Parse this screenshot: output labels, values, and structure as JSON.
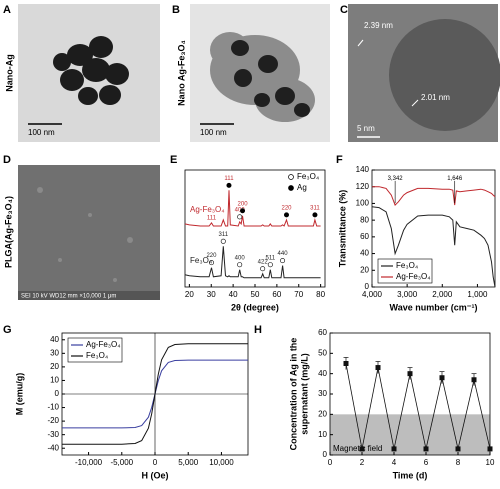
{
  "images": [
    {
      "letter": "A",
      "side_label": "Nano-Ag",
      "scale_bar": "100 nm"
    },
    {
      "letter": "B",
      "side_label": "Nano Ag-Fe₃O₄",
      "scale_bar": "100 nm"
    },
    {
      "letter": "C",
      "annotations": [
        "2.39 nm",
        "2.01 nm"
      ],
      "scale_bar": "5 nm"
    },
    {
      "letter": "D",
      "side_label": "PLGA(Ag-Fe₃O₄)",
      "footer": "SEI 10 kV WD12 mm ×10,000 1 μm"
    }
  ],
  "chart_data": [
    {
      "type": "line",
      "letter": "E",
      "xlabel": "2θ (degree)",
      "x": [
        18,
        20,
        25,
        29,
        30.1,
        31,
        34.5,
        35.5,
        36.5,
        37.5,
        38.1,
        38.7,
        42.3,
        43,
        43.7,
        44.3,
        45,
        52.8,
        53.5,
        54.2,
        56.3,
        57,
        57.7,
        61.9,
        62.6,
        63.3,
        64.4,
        65.2,
        76.7,
        77.4,
        78.2,
        80
      ],
      "series": [
        {
          "name": "Ag-Fe₃O₄",
          "color": "#c0282d",
          "values": [
            62,
            61,
            60,
            60,
            63,
            60,
            60,
            66,
            60,
            60,
            95,
            61,
            60,
            64,
            62,
            70,
            60,
            60,
            61,
            60,
            60,
            62,
            60,
            60,
            61,
            60,
            66,
            60,
            60,
            66,
            60,
            60
          ]
        },
        {
          "name": "Fe₃O₄",
          "color": "#222222",
          "values": [
            12,
            11,
            10,
            10,
            19,
            10,
            11,
            40,
            11,
            10,
            11,
            10,
            10,
            17,
            10,
            10,
            9,
            9,
            13,
            9,
            9,
            17,
            9,
            9,
            21,
            9,
            9,
            9,
            9,
            9,
            9,
            9
          ]
        }
      ],
      "peak_labels": [
        {
          "text": "111",
          "x": 30.1,
          "series": 0,
          "marker": "none"
        },
        {
          "text": "111",
          "x": 38.1,
          "series": 0,
          "marker": "filled"
        },
        {
          "text": "400",
          "x": 43,
          "series": 0,
          "marker": "open"
        },
        {
          "text": "200",
          "x": 44.3,
          "series": 0,
          "marker": "filled"
        },
        {
          "text": "220",
          "x": 64.4,
          "series": 0,
          "marker": "filled"
        },
        {
          "text": "311",
          "x": 77.4,
          "series": 0,
          "marker": "filled"
        },
        {
          "text": "220",
          "x": 30.1,
          "series": 1,
          "marker": "open"
        },
        {
          "text": "311",
          "x": 35.5,
          "series": 1,
          "marker": "open"
        },
        {
          "text": "400",
          "x": 43,
          "series": 1,
          "marker": "open"
        },
        {
          "text": "422",
          "x": 53.5,
          "series": 1,
          "marker": "open"
        },
        {
          "text": "511",
          "x": 57,
          "series": 1,
          "marker": "open"
        },
        {
          "text": "440",
          "x": 62.6,
          "series": 1,
          "marker": "open"
        }
      ],
      "legend": [
        {
          "label": "Fe₃O₄",
          "marker": "open"
        },
        {
          "label": "Ag",
          "marker": "filled"
        }
      ],
      "xlim": [
        18,
        82
      ],
      "xticks": [
        20,
        30,
        40,
        50,
        60,
        70,
        80
      ],
      "ylim": [
        0,
        115
      ]
    },
    {
      "type": "line",
      "letter": "F",
      "xlabel": "Wave number (cm⁻¹)",
      "ylabel": "Transmittance (%)",
      "x": [
        4000,
        3800,
        3600,
        3450,
        3342,
        3250,
        3100,
        3000,
        2700,
        2400,
        2000,
        1800,
        1700,
        1646,
        1600,
        1500,
        1300,
        1100,
        900,
        800,
        700,
        600,
        550,
        500
      ],
      "series": [
        {
          "name": "Fe₃O₄",
          "color": "#222222",
          "values": [
            96,
            95,
            90,
            70,
            40,
            50,
            68,
            75,
            85,
            86,
            86,
            84,
            80,
            50,
            78,
            72,
            70,
            68,
            62,
            58,
            50,
            30,
            12,
            0
          ]
        },
        {
          "name": "Ag-Fe₃O₄",
          "color": "#c0282d",
          "values": [
            120,
            120,
            118,
            110,
            98,
            102,
            110,
            113,
            118,
            118,
            117,
            117,
            116,
            98,
            115,
            114,
            115,
            116,
            117,
            116,
            114,
            112,
            110,
            108
          ]
        }
      ],
      "annotations": [
        {
          "x": 3342,
          "label": "3,342"
        },
        {
          "x": 1646,
          "label": "1,646"
        }
      ],
      "xlim": [
        4000,
        500
      ],
      "xticks": [
        {
          "value": 4000,
          "label": "4,000"
        },
        {
          "value": 3000,
          "label": "3,000"
        },
        {
          "value": 2000,
          "label": "2,000"
        },
        {
          "value": 1000,
          "label": "1,000"
        }
      ],
      "ylim": [
        0,
        140
      ],
      "yticks": [
        0,
        20,
        40,
        60,
        80,
        100,
        120,
        140
      ],
      "legend": "lower left"
    },
    {
      "type": "line",
      "letter": "G",
      "xlabel": "H (Oe)",
      "ylabel": "M (emu/g)",
      "x": [
        -14000,
        -10000,
        -5000,
        -3000,
        -2000,
        -1000,
        -500,
        0,
        500,
        1000,
        2000,
        3000,
        5000,
        10000,
        14000
      ],
      "series": [
        {
          "name": "Ag-Fe₃O₄",
          "color": "#3a3fa0",
          "values": [
            -25,
            -25,
            -25,
            -24.7,
            -23.3,
            -17.1,
            -9.9,
            0,
            9.9,
            17.1,
            23.3,
            24.7,
            25,
            25,
            25
          ]
        },
        {
          "name": "Fe₃O₄",
          "color": "#111111",
          "values": [
            -37,
            -37,
            -37,
            -36.5,
            -34.4,
            -25.2,
            -14.6,
            0,
            14.6,
            25.2,
            34.4,
            36.5,
            37,
            37,
            37
          ]
        }
      ],
      "xlim": [
        -14000,
        14000
      ],
      "xticks": [
        {
          "value": -10000,
          "label": "-10,000"
        },
        {
          "value": -5000,
          "label": "-5,000"
        },
        0,
        {
          "value": 5000,
          "label": "5,000"
        },
        {
          "value": 10000,
          "label": "10,000"
        }
      ],
      "ylim": [
        -45,
        45
      ],
      "yticks": [
        -40,
        -30,
        -20,
        -10,
        0,
        10,
        20,
        30,
        40
      ],
      "legend": "upper left"
    },
    {
      "type": "errorline",
      "letter": "H",
      "xlabel": "Time (d)",
      "ylabel": [
        "Concentration of Ag in the",
        "supernatant (mg/L)"
      ],
      "x": [
        1,
        2,
        3,
        4,
        5,
        6,
        7,
        8,
        9,
        10
      ],
      "values": [
        45,
        3,
        43,
        3,
        40,
        3,
        38,
        3,
        37,
        3
      ],
      "errors": [
        3,
        1,
        3,
        1,
        3,
        1,
        3,
        1,
        3,
        1
      ],
      "color": "#111111",
      "band": {
        "from": 0,
        "to": 20,
        "label": "Magnetic field",
        "color": "#bdbdbd"
      },
      "xlim": [
        0,
        10
      ],
      "xticks": [
        0,
        2,
        4,
        6,
        8,
        10
      ],
      "ylim": [
        0,
        60
      ],
      "yticks": [
        0,
        10,
        20,
        30,
        40,
        50,
        60
      ]
    }
  ]
}
